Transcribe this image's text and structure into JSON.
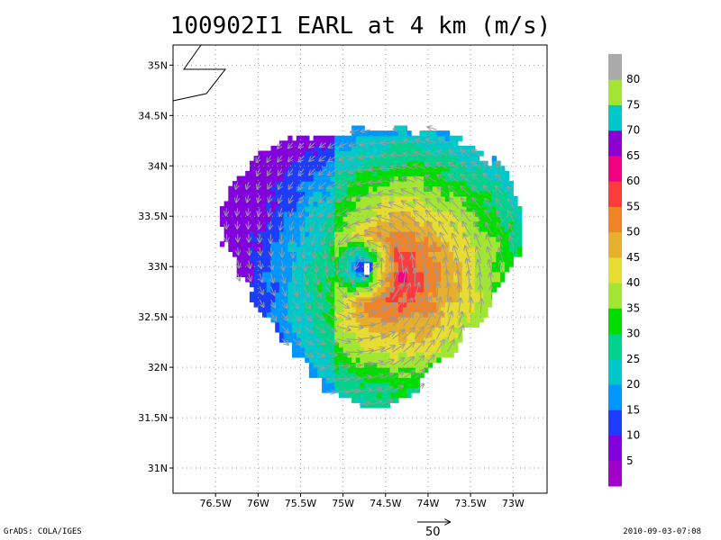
{
  "chart_data": {
    "type": "heatmap",
    "title": "100902I1 EARL at 4 km (m/s)",
    "xlim": [
      -77.0,
      -72.6
    ],
    "ylim": [
      30.75,
      35.2
    ],
    "x_ticks": [
      {
        "value": -76.5,
        "label": "76.5W"
      },
      {
        "value": -76.0,
        "label": "76W"
      },
      {
        "value": -75.5,
        "label": "75.5W"
      },
      {
        "value": -75.0,
        "label": "75W"
      },
      {
        "value": -74.5,
        "label": "74.5W"
      },
      {
        "value": -74.0,
        "label": "74W"
      },
      {
        "value": -73.5,
        "label": "73.5W"
      },
      {
        "value": -73.0,
        "label": "73W"
      }
    ],
    "y_ticks": [
      {
        "value": 31.0,
        "label": "31N"
      },
      {
        "value": 31.5,
        "label": "31.5N"
      },
      {
        "value": 32.0,
        "label": "32N"
      },
      {
        "value": 32.5,
        "label": "32.5N"
      },
      {
        "value": 33.0,
        "label": "33N"
      },
      {
        "value": 33.5,
        "label": "33.5N"
      },
      {
        "value": 34.0,
        "label": "34N"
      },
      {
        "value": 34.5,
        "label": "34.5N"
      },
      {
        "value": 35.0,
        "label": "35N"
      }
    ],
    "grid": true,
    "storm_center": {
      "lon": -74.72,
      "lat": 32.98
    },
    "colorbar": {
      "colors": [
        "#a000c8",
        "#8200dc",
        "#1e3cff",
        "#0096ff",
        "#00c8c8",
        "#00d28c",
        "#00dc00",
        "#a0e632",
        "#e6dc32",
        "#e6af2d",
        "#f08228",
        "#fa3c3c",
        "#f00082",
        "#8c00d2",
        "#00c8c8",
        "#a0e632",
        "#aaaaaa"
      ],
      "labels": [
        "5",
        "10",
        "15",
        "20",
        "25",
        "30",
        "35",
        "40",
        "45",
        "50",
        "55",
        "60",
        "65",
        "70",
        "75",
        "80"
      ]
    },
    "footer_left": "GrADS: COLA/IGES",
    "footer_right": "2010-09-03-07:08",
    "vector_reference_label": "50"
  }
}
